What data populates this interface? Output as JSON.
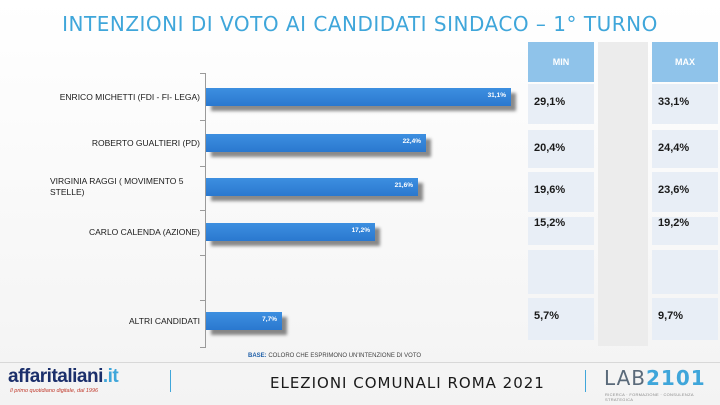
{
  "title": "INTENZIONI DI VOTO AI CANDIDATI SINDACO – 1° TURNO",
  "table": {
    "min_header": "MIN",
    "max_header": "MAX",
    "rows": [
      {
        "min": "29,1%",
        "max": "33,1%"
      },
      {
        "min": "20,4%",
        "max": "24,4%"
      },
      {
        "min": "19,6%",
        "max": "23,6%"
      },
      {
        "min": "15,2%",
        "max": "19,2%"
      },
      {
        "min": "",
        "max": ""
      },
      {
        "min": "5,7%",
        "max": "9,7%"
      }
    ]
  },
  "chart_data": {
    "type": "bar",
    "orientation": "horizontal",
    "categories": [
      "ENRICO MICHETTI (FDI - FI- LEGA)",
      "ROBERTO GUALTIERI (PD)",
      "VIRGINIA RAGGI ( MOVIMENTO 5 STELLE)",
      "CARLO CALENDA (AZIONE)",
      "",
      "ALTRI CANDIDATI"
    ],
    "values": [
      31.1,
      22.4,
      21.6,
      17.2,
      null,
      7.7
    ],
    "value_labels": [
      "31,1%",
      "22,4%",
      "21,6%",
      "17,2%",
      "",
      "7,7%"
    ],
    "bar_color": "#2f80d6",
    "xlim": [
      0,
      32
    ]
  },
  "base_note": {
    "label": "BASE:",
    "text": "COLORO CHE ESPRIMONO UN'INTENZIONE DI VOTO"
  },
  "footer": {
    "brand_main": "affaritaliani",
    "brand_suffix": ".it",
    "tagline": "Il primo quotidiano digitale, dal 1996",
    "title": "ELEZIONI COMUNALI ROMA 2021",
    "lab_prefix": "LAB",
    "lab_number": "2101",
    "lab_sub": "RICERCA · FORMAZIONE · CONSULENZA STRATEGICA"
  }
}
